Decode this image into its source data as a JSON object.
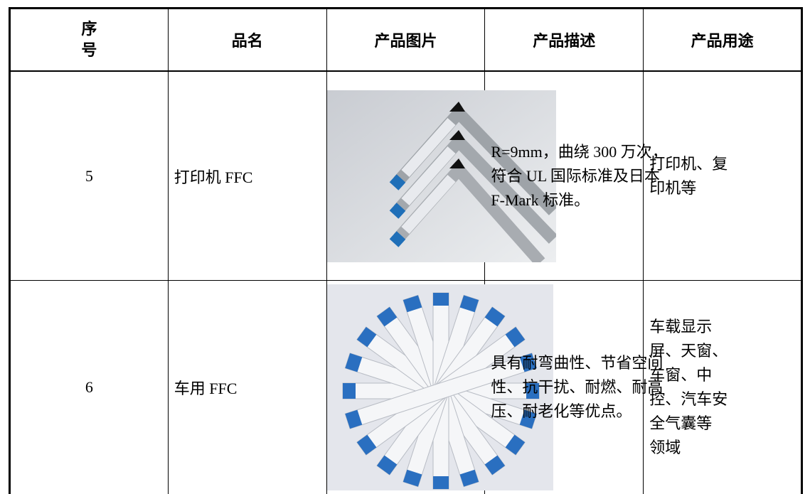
{
  "table": {
    "header": [
      "序号",
      "品名",
      "产品图片",
      "产品描述",
      "产品用途"
    ],
    "rows": [
      {
        "no": "5",
        "name": "打印机 FFC",
        "description": [
          "R=9mm，曲绕 300 万次，",
          "符合 UL 国际标准及日本",
          "F-Mark 标准。"
        ],
        "usage": [
          "打印机、复",
          "印机等"
        ]
      },
      {
        "no": "6",
        "name": "车用 FFC",
        "description": [
          "具有耐弯曲性、节省空间",
          "性、抗干扰、耐燃、耐高",
          "压、耐老化等优点。"
        ],
        "usage": [
          "车载显示",
          "屏、天窗、",
          "车窗、中",
          "控、汽车安",
          "全气囊等",
          "领域"
        ]
      }
    ]
  }
}
